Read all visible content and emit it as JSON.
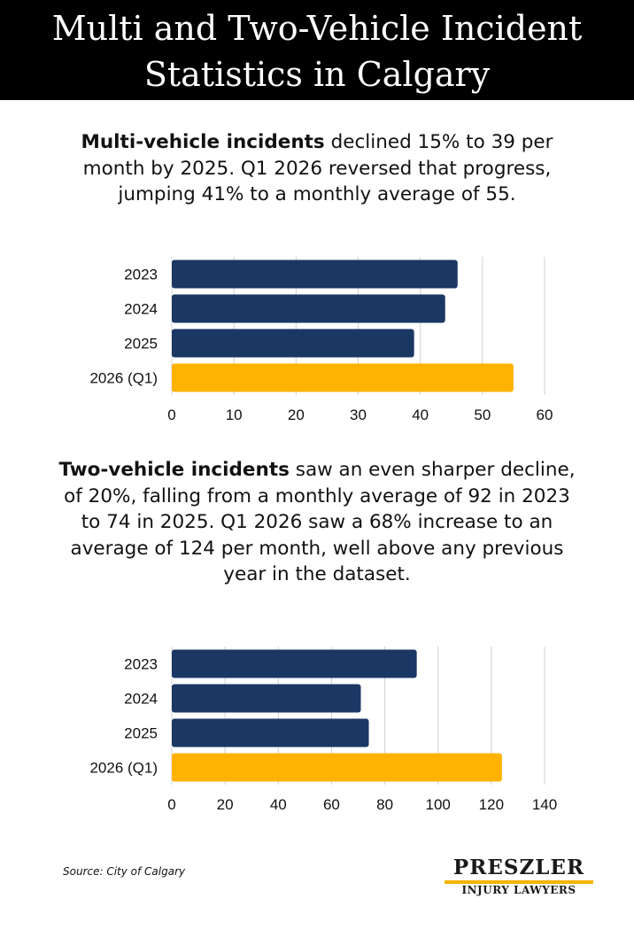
{
  "header": {
    "title_line1": "Multi and Two-Vehicle Incident",
    "title_line2": "Statistics in Calgary"
  },
  "section1": {
    "bold": "Multi-vehicle incidents",
    "text": " declined 15% to 39 per month by 2025. Q1 2026 reversed that progress, jumping 41% to a monthly average of 55."
  },
  "section2": {
    "bold": "Two-vehicle incidents",
    "text": " saw an even sharper decline, of 20%, falling from a monthly average of 92 in 2023 to 74 in 2025. Q1 2026 saw a 68% increase to an average of 124 per month, well above any previous year in the dataset."
  },
  "colors": {
    "bar": "#1b3764",
    "highlight": "#ffb300",
    "grid": "#d0d0d0"
  },
  "chart_data": [
    {
      "type": "bar",
      "orientation": "horizontal",
      "categories": [
        "2023",
        "2024",
        "2025",
        "2026 (Q1)"
      ],
      "values": [
        46,
        44,
        39,
        55
      ],
      "xlim": [
        0,
        60
      ],
      "xticks": [
        0,
        10,
        20,
        30,
        40,
        50,
        60
      ],
      "grid": true,
      "highlight_index": 3
    },
    {
      "type": "bar",
      "orientation": "horizontal",
      "categories": [
        "2023",
        "2024",
        "2025",
        "2026 (Q1)"
      ],
      "values": [
        92,
        71,
        74,
        124
      ],
      "xlim": [
        0,
        140
      ],
      "xticks": [
        0,
        20,
        40,
        60,
        80,
        100,
        120,
        140
      ],
      "grid": true,
      "highlight_index": 3
    }
  ],
  "footer": {
    "source": "Source: City of Calgary",
    "logo_name": "PRESZLER",
    "logo_sub": "INJURY LAWYERS"
  }
}
